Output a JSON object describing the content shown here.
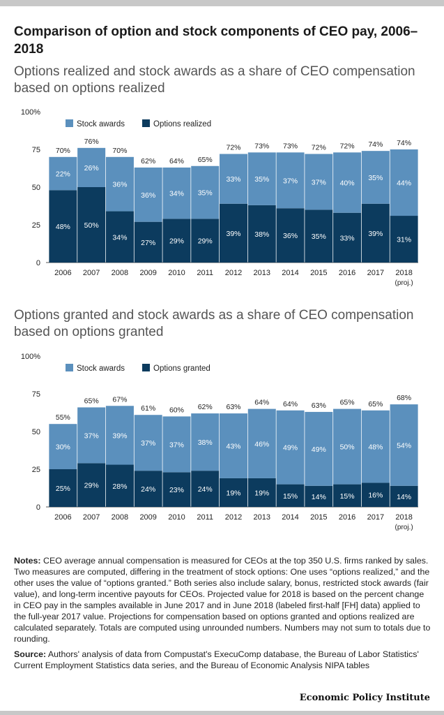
{
  "title": "Comparison of option and stock components of CEO pay, 2006–2018",
  "colors": {
    "stock": "#5b90bd",
    "options": "#0c3b5e"
  },
  "chart_data": [
    {
      "type": "bar",
      "stacked": true,
      "title": "Options realized and stock awards as a share of CEO compensation based on options realized",
      "categories": [
        "2006",
        "2007",
        "2008",
        "2009",
        "2010",
        "2011",
        "2012",
        "2013",
        "2014",
        "2015",
        "2016",
        "2017",
        "2018"
      ],
      "category_sublabels": [
        "",
        "",
        "",
        "",
        "",
        "",
        "",
        "",
        "",
        "",
        "",
        "",
        "(proj.)"
      ],
      "series": [
        {
          "name": "Options realized",
          "values": [
            48,
            50,
            34,
            27,
            29,
            29,
            39,
            38,
            36,
            35,
            33,
            39,
            31
          ]
        },
        {
          "name": "Stock awards",
          "values": [
            22,
            26,
            36,
            36,
            34,
            35,
            33,
            35,
            37,
            37,
            40,
            35,
            44
          ]
        }
      ],
      "totals": [
        70,
        76,
        70,
        62,
        64,
        65,
        72,
        73,
        73,
        72,
        72,
        74,
        74
      ],
      "yticks": [
        "0",
        "25",
        "50",
        "75",
        "100%"
      ],
      "ylim": [
        0,
        100
      ],
      "legend": [
        {
          "label": "Stock awards",
          "color": "#5b90bd"
        },
        {
          "label": "Options realized",
          "color": "#0c3b5e"
        }
      ],
      "legend_position": "top-left",
      "grid": false
    },
    {
      "type": "bar",
      "stacked": true,
      "title": "Options granted and stock awards as a share of CEO compensation based on options granted",
      "categories": [
        "2006",
        "2007",
        "2008",
        "2009",
        "2010",
        "2011",
        "2012",
        "2013",
        "2014",
        "2015",
        "2016",
        "2017",
        "2018"
      ],
      "category_sublabels": [
        "",
        "",
        "",
        "",
        "",
        "",
        "",
        "",
        "",
        "",
        "",
        "",
        "(proj.)"
      ],
      "series": [
        {
          "name": "Options granted",
          "values": [
            25,
            29,
            28,
            24,
            23,
            24,
            19,
            19,
            15,
            14,
            15,
            16,
            14
          ]
        },
        {
          "name": "Stock awards",
          "values": [
            30,
            37,
            39,
            37,
            37,
            38,
            43,
            46,
            49,
            49,
            50,
            48,
            54
          ]
        }
      ],
      "totals": [
        55,
        65,
        67,
        61,
        60,
        62,
        63,
        64,
        64,
        63,
        65,
        65,
        68
      ],
      "yticks": [
        "0",
        "25",
        "50",
        "75",
        "100%"
      ],
      "ylim": [
        0,
        100
      ],
      "legend": [
        {
          "label": "Stock awards",
          "color": "#5b90bd"
        },
        {
          "label": "Options granted",
          "color": "#0c3b5e"
        }
      ],
      "legend_position": "top-left",
      "grid": false
    }
  ],
  "notes": {
    "label": "Notes:",
    "text": " CEO average annual compensation is measured for CEOs at the top 350 U.S. firms ranked by sales. Two measures are computed, differing in the treatment of stock options: One uses “options realized,” and the other uses the value of “options granted.” Both series also include salary, bonus, restricted stock awards (fair value), and long-term incentive payouts for CEOs. Projected value for 2018 is based on the percent change in CEO pay in the samples available in June 2017 and in June 2018 (labeled first-half [FH] data) applied to the full-year 2017 value. Projections for compensation based on options granted and options realized are calculated separately. Totals are computed using unrounded numbers. Numbers may not sum to totals due to rounding."
  },
  "source": {
    "label": "Source:",
    "text": " Authors' analysis of data from Compustat's ExecuComp database, the Bureau of Labor Statistics' Current Employment Statistics data series, and the Bureau of Economic Analysis NIPA tables"
  },
  "logo": "Economic Policy Institute"
}
